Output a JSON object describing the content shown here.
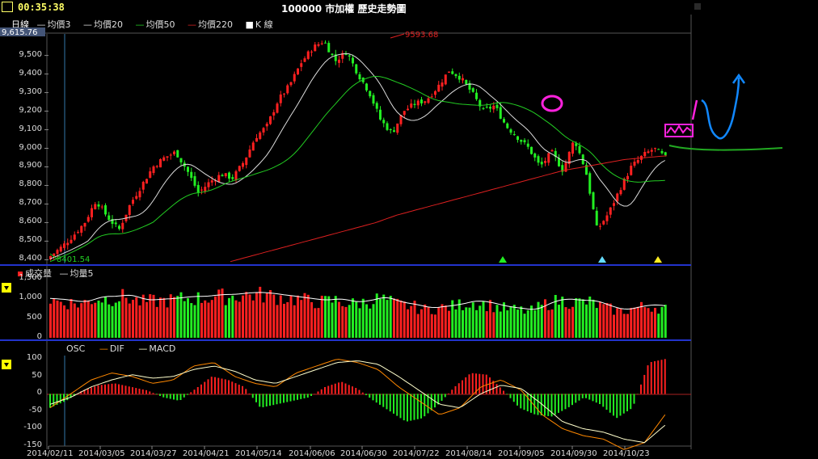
{
  "header": {
    "time": "00:35:38",
    "title": "100000 市加權  歷史走勢圖"
  },
  "legend_main": {
    "period": "日線",
    "ma3": "均價3",
    "ma20": "均價20",
    "ma50": "均價50",
    "ma220": "均價220",
    "kline": "K 線",
    "dash": "—",
    "square": "■"
  },
  "legend_volume": {
    "label": "成交量",
    "ma": "均量5",
    "dash": "—"
  },
  "legend_macd": {
    "osc": "OSC",
    "dif": "DIF",
    "macd": "MACD",
    "dash": "—"
  },
  "annotations": {
    "high_label": "9593.68",
    "low_label": "8401.54",
    "top_left_value": "9,615.76"
  },
  "colors": {
    "up": "#ff2020",
    "down": "#22ee22",
    "ma3": "#dddddd",
    "ma20": "#dddddd",
    "ma50": "#22cc22",
    "ma220": "#dd2020",
    "dif": "#ff8800",
    "macd": "#ffffcc",
    "divider": "#2233cc",
    "annotation_magenta": "#ff22dd",
    "annotation_blue": "#1188ff",
    "annotation_green": "#22aa22"
  },
  "chart_data": [
    {
      "type": "candlestick",
      "title": "100000 市加權  歷史走勢圖",
      "ylim": [
        8380,
        9615.76
      ],
      "yticks": [
        "9,500",
        "9,400",
        "9,300",
        "9,200",
        "9,100",
        "9,000",
        "8,900",
        "8,800",
        "8,700",
        "8,600",
        "8,500",
        "8,400"
      ],
      "x_ticks": [
        "2014/02/11",
        "2014/03/05",
        "2014/03/27",
        "2014/04/21",
        "2014/05/14",
        "2014/06/06",
        "2014/06/30",
        "2014/07/22",
        "2014/08/14",
        "2014/09/05",
        "2014/09/30",
        "2014/10/23"
      ],
      "close_keypoints": [
        8420,
        8470,
        8530,
        8600,
        8720,
        8630,
        8560,
        8700,
        8800,
        8900,
        8950,
        8980,
        8880,
        8760,
        8820,
        8860,
        8840,
        8930,
        9060,
        9120,
        9260,
        9340,
        9460,
        9540,
        9580,
        9470,
        9520,
        9400,
        9300,
        9150,
        9080,
        9200,
        9240,
        9260,
        9330,
        9420,
        9380,
        9300,
        9200,
        9230,
        9120,
        9060,
        9000,
        8900,
        8980,
        8880,
        9050,
        8880,
        8560,
        8650,
        8780,
        8900,
        8960,
        9000,
        8950
      ],
      "ma220_keypoints": [
        8390,
        8420,
        8450,
        8480,
        8510,
        8540,
        8570,
        8600,
        8640,
        8670,
        8700,
        8730,
        8760,
        8790,
        8820,
        8850,
        8880,
        8900,
        8920,
        8940,
        8950,
        8960
      ],
      "markers": [
        "up-green",
        "up-cyan",
        "up-yellow"
      ]
    },
    {
      "type": "bar",
      "title": "成交量",
      "ylim": [
        0,
        1600
      ],
      "yticks": [
        "1,500",
        "1,000",
        "500",
        "0"
      ],
      "volume_keypoints": [
        1000,
        950,
        900,
        1050,
        1050,
        1100,
        950,
        980,
        1000,
        1050,
        1050,
        1100,
        1100,
        1150,
        1150,
        1100,
        1050,
        1000,
        950,
        1000,
        900,
        950,
        1050,
        900,
        850,
        750,
        800,
        850,
        950,
        900,
        800,
        750,
        700,
        900,
        1000,
        950,
        950,
        800,
        700,
        800,
        850,
        780
      ]
    },
    {
      "type": "bar+line",
      "title": "MACD",
      "ylim": [
        -150,
        110
      ],
      "yticks": [
        "100",
        "50",
        "0",
        "-50",
        "-100",
        "-150"
      ],
      "osc_keypoints": [
        -40,
        -20,
        10,
        25,
        30,
        20,
        10,
        -10,
        -20,
        15,
        50,
        40,
        20,
        -40,
        -30,
        -20,
        -10,
        20,
        35,
        15,
        -20,
        -50,
        -80,
        -70,
        -30,
        20,
        60,
        55,
        10,
        -40,
        -60,
        -65,
        -40,
        -10,
        -30,
        -70,
        -40,
        90,
        100
      ],
      "dif_keypoints": [
        -40,
        0,
        40,
        60,
        50,
        30,
        40,
        80,
        90,
        50,
        30,
        20,
        60,
        80,
        100,
        90,
        70,
        20,
        -20,
        -60,
        -40,
        20,
        40,
        10,
        -60,
        -100,
        -120,
        -130,
        -160,
        -140,
        -60
      ],
      "macd_keypoints": [
        -30,
        -10,
        20,
        40,
        55,
        45,
        50,
        70,
        80,
        65,
        40,
        30,
        50,
        70,
        90,
        95,
        85,
        50,
        10,
        -30,
        -40,
        0,
        25,
        15,
        -30,
        -80,
        -100,
        -110,
        -130,
        -140,
        -90
      ]
    }
  ]
}
